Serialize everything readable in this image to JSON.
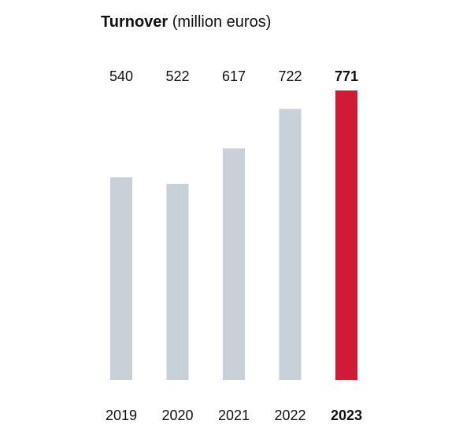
{
  "chart_data": {
    "type": "bar",
    "title": "Turnover",
    "subtitle": "(million euros)",
    "categories": [
      "2019",
      "2020",
      "2021",
      "2022",
      "2023"
    ],
    "values": [
      540,
      522,
      617,
      722,
      771
    ],
    "value_labels": [
      "540",
      "522",
      "617",
      "722",
      "771"
    ],
    "highlight_index": 4,
    "ylim": [
      0,
      771
    ],
    "grid": false,
    "legend": "none",
    "colors": {
      "bar": "#c8d1d8",
      "highlight": "#d11a35",
      "text": "#111111"
    }
  }
}
